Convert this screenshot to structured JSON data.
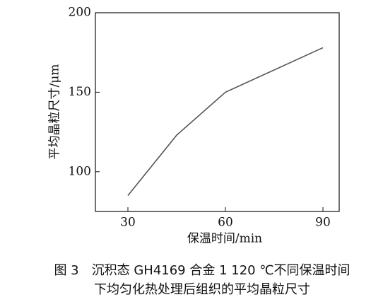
{
  "chart_data": {
    "type": "line",
    "x_label": "保温时间/min",
    "y_label": "平均晶粒尺寸/μm",
    "caption": [
      "图 3　沉积态 GH4169 合金 1 120 ℃不同保温时间",
      "下均匀化热处理后组织的平均晶粒尺寸"
    ],
    "x": [
      30,
      45,
      60,
      90
    ],
    "values": [
      85,
      123,
      150,
      178
    ],
    "color": "#555555",
    "xlim": [
      20,
      95
    ],
    "xticks": [
      30,
      60,
      90
    ],
    "ylim": [
      75,
      200
    ],
    "yticks": [
      100,
      150,
      200
    ],
    "grid": false
  }
}
